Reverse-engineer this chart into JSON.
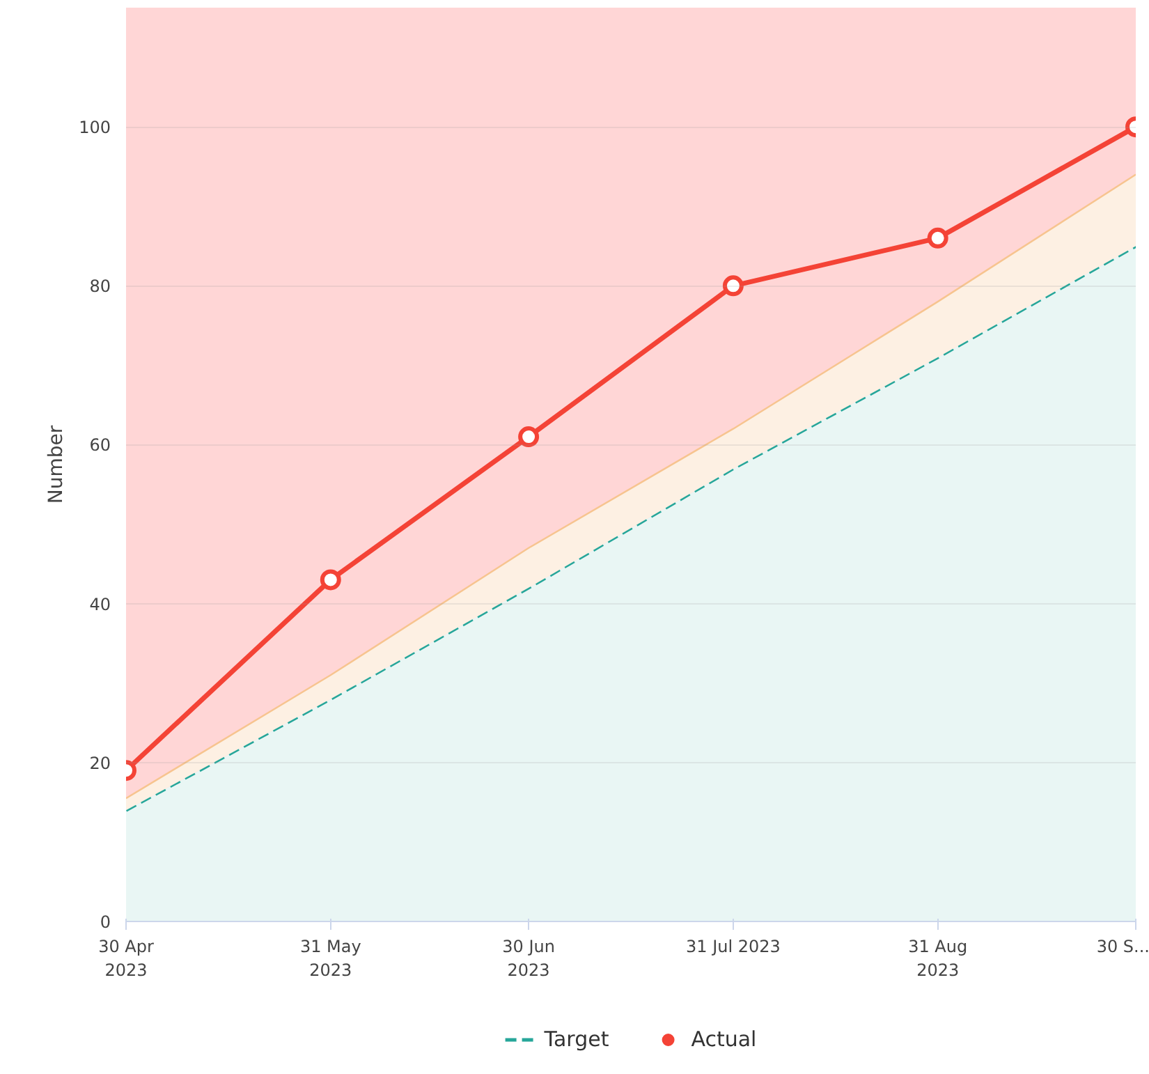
{
  "chart_data": {
    "type": "line",
    "ylabel": "Number",
    "x": [
      "2023-04-30",
      "2023-05-31",
      "2023-06-30",
      "2023-07-31",
      "2023-08-31",
      "2023-09-30"
    ],
    "xlim": [
      "2023-04-30",
      "2023-09-30"
    ],
    "xticks": [
      {
        "value": "2023-04-30",
        "label": "30 Apr\n2023"
      },
      {
        "value": "2023-05-31",
        "label": "31 May\n2023"
      },
      {
        "value": "2023-06-30",
        "label": "30 Jun\n2023"
      },
      {
        "value": "2023-07-31",
        "label": "31 Jul 2023"
      },
      {
        "value": "2023-08-31",
        "label": "31 Aug\n2023"
      },
      {
        "value": "2023-09-30",
        "label": "30 S..."
      }
    ],
    "ylim": [
      0,
      115
    ],
    "yticks": [
      0,
      20,
      40,
      60,
      80,
      100
    ],
    "bands": [
      {
        "axis": "y",
        "from": 0,
        "to": 115,
        "color": "#ffd6d6"
      }
    ],
    "series": [
      {
        "name": "Target",
        "type": "area",
        "color": "#26a69a",
        "line_style": "dashed",
        "values": [
          14,
          28,
          42,
          57,
          71,
          85
        ]
      },
      {
        "type": "line",
        "color": "#f7c48f",
        "values": [
          15.5,
          31,
          47,
          62,
          78,
          94
        ],
        "lower": [
          14,
          28,
          42,
          57,
          71,
          85
        ],
        "upper": [
          15.5,
          31,
          47,
          62,
          78,
          94
        ]
      },
      {
        "name": "Actual",
        "color": "#f44336",
        "marker": "circle",
        "values": [
          19,
          43,
          61,
          80,
          86,
          100
        ]
      }
    ],
    "grid": "y",
    "legend": "bottom"
  }
}
